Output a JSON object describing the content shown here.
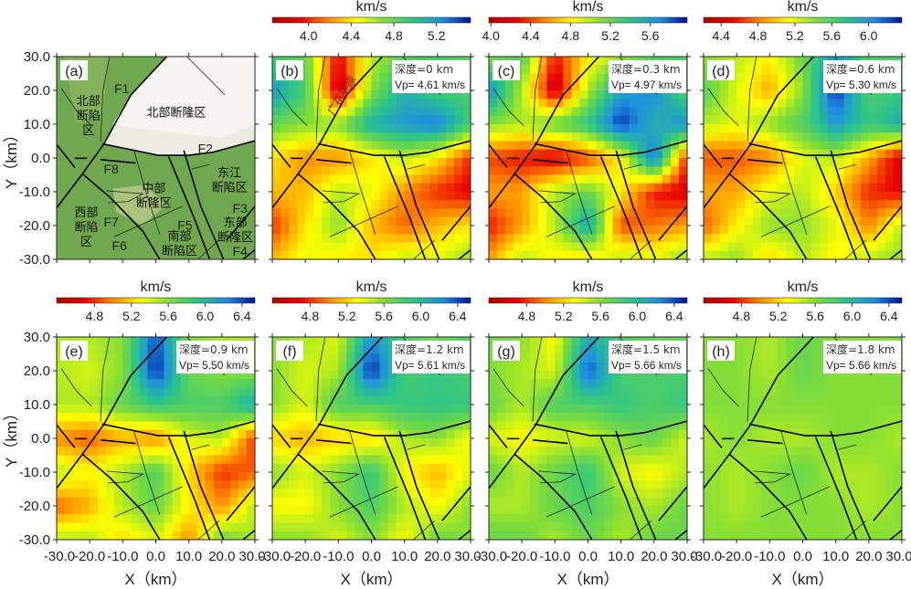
{
  "figure": {
    "xlabel": "X（km）",
    "ylabel": "Y（km）",
    "x_ticks": [
      -30,
      -20,
      -10,
      0,
      10,
      20,
      30
    ],
    "y_ticks": [
      30,
      20,
      10,
      0,
      -10,
      -20,
      -30
    ],
    "colorbar_unit": "km/s",
    "colormap": [
      "#b00000",
      "#e80000",
      "#ff8c00",
      "#ffff00",
      "#7ddc3c",
      "#2cc48a",
      "#1e90e0",
      "#0010a0"
    ]
  },
  "faults": [
    [
      [
        3.3,
        30
      ],
      [
        -7.5,
        18.7
      ],
      [
        -15.8,
        4
      ],
      [
        -22.2,
        -4.7
      ],
      [
        -30,
        -14.8
      ]
    ],
    [
      [
        -16.2,
        4.2
      ],
      [
        0.7,
        0.8
      ],
      [
        9.9,
        0.8
      ],
      [
        17.2,
        1.7
      ],
      [
        30,
        5.1
      ]
    ],
    [
      [
        -16.7,
        -0.5
      ],
      [
        -6.1,
        -1.5
      ]
    ],
    [
      [
        -24.5,
        -0.1
      ],
      [
        -20.8,
        -0.1
      ]
    ],
    [
      [
        -30,
        4
      ],
      [
        -24.5,
        -2.8
      ]
    ],
    [
      [
        -22.2,
        -4.7
      ],
      [
        -13.9,
        -11.6
      ],
      [
        -3.9,
        -21.7
      ],
      [
        1.2,
        -30
      ]
    ],
    [
      [
        3.9,
        0.4
      ],
      [
        11.7,
        -18
      ],
      [
        16.3,
        -30
      ]
    ],
    [
      [
        8.5,
        2.2
      ],
      [
        13.6,
        -14.3
      ],
      [
        20.5,
        -30
      ]
    ],
    [
      [
        30,
        -14.3
      ],
      [
        21.4,
        -24.4
      ]
    ],
    [
      [
        30,
        -27.2
      ],
      [
        26.4,
        -30
      ]
    ]
  ],
  "minor_faults": [
    [
      [
        -14,
        30
      ],
      [
        -16,
        20
      ],
      [
        -16.7,
        5
      ]
    ],
    [
      [
        9.4,
        30
      ],
      [
        20.9,
        18.7
      ]
    ],
    [
      [
        -28.6,
        20.6
      ],
      [
        -24,
        14
      ],
      [
        -19.4,
        9.5
      ]
    ],
    [
      [
        -6.6,
        2.2
      ],
      [
        -3,
        -10
      ],
      [
        1.2,
        -22.6
      ]
    ],
    [
      [
        -12.6,
        -23.3
      ],
      [
        8.1,
        -14.3
      ]
    ],
    [
      [
        -14.9,
        -9.7
      ],
      [
        -3.9,
        -10.6
      ],
      [
        -8.4,
        -12.9
      ],
      [
        -14.4,
        -13.2
      ]
    ],
    [
      [
        10.8,
        -3.3
      ],
      [
        16.3,
        -1.9
      ]
    ],
    [
      [
        12.7,
        -30
      ],
      [
        19.1,
        -24.4
      ]
    ]
  ],
  "chart_data": [
    {
      "panel": "(a)",
      "type": "map",
      "labels": [
        {
          "lines": [
            "F1"
          ],
          "color": "#e02020"
        },
        {
          "lines": [
            "北部",
            "断陷",
            "区"
          ],
          "color": "#111111"
        },
        {
          "lines": [
            "北部断隆区"
          ],
          "color": "#111111"
        },
        {
          "lines": [
            "F2"
          ],
          "color": "#e02020"
        },
        {
          "lines": [
            "F8"
          ],
          "color": "#e02020"
        },
        {
          "lines": [
            "东江",
            "断陷区"
          ],
          "color": "#111111"
        },
        {
          "lines": [
            "中部",
            "断隆区"
          ],
          "color": "#111111"
        },
        {
          "lines": [
            "F3"
          ],
          "color": "#e02020"
        },
        {
          "lines": [
            "西部",
            "断陷",
            "区"
          ],
          "color": "#111111"
        },
        {
          "lines": [
            "F7"
          ],
          "color": "#e02020"
        },
        {
          "lines": [
            "F5"
          ],
          "color": "#e02020"
        },
        {
          "lines": [
            "东部",
            "断隆区"
          ],
          "color": "#111111"
        },
        {
          "lines": [
            "F6"
          ],
          "color": "#e02020"
        },
        {
          "lines": [
            "南部",
            "断陷区"
          ],
          "color": "#111111"
        },
        {
          "lines": [
            "F4"
          ],
          "color": "#e02020"
        }
      ],
      "xlim": [
        -30,
        30
      ],
      "ylim": [
        -30,
        30
      ]
    },
    {
      "panel": "(b)",
      "type": "heatmap",
      "depth_label": "深度=0 km",
      "vp_label": "Vp= 4.61 km/s",
      "annotation": "广花平原",
      "colorbar_range": [
        3.66,
        5.52
      ],
      "colorbar_ticks": [
        4.0,
        4.4,
        4.8,
        5.2
      ],
      "x": [
        -30,
        -20,
        -10,
        0,
        10,
        20,
        30
      ],
      "y": [
        30,
        20,
        10,
        0,
        -10,
        -20,
        -30
      ],
      "values": [
        [
          4.9,
          4.8,
          3.9,
          4.6,
          4.8,
          4.9,
          4.8
        ],
        [
          5.2,
          4.9,
          3.8,
          4.7,
          5.1,
          4.9,
          4.9
        ],
        [
          4.8,
          4.7,
          4.7,
          5.1,
          5.2,
          5.3,
          4.9
        ],
        [
          4.4,
          4.2,
          4.2,
          4.4,
          4.6,
          4.4,
          4.0
        ],
        [
          4.3,
          4.3,
          4.6,
          4.5,
          4.2,
          4.0,
          3.9
        ],
        [
          4.0,
          4.4,
          4.7,
          4.3,
          4.1,
          4.3,
          4.4
        ],
        [
          4.3,
          4.5,
          4.4,
          4.4,
          4.6,
          4.5,
          4.7
        ]
      ]
    },
    {
      "panel": "(c)",
      "type": "heatmap",
      "depth_label": "深度=0.3 km",
      "vp_label": "Vp= 4.97 km/s",
      "colorbar_range": [
        3.98,
        5.97
      ],
      "colorbar_ticks": [
        4.0,
        4.4,
        4.8,
        5.2,
        5.6
      ],
      "x": [
        -30,
        -20,
        -10,
        0,
        10,
        20,
        30
      ],
      "y": [
        30,
        20,
        10,
        0,
        -10,
        -20,
        -30
      ],
      "values": [
        [
          5.1,
          5.3,
          4.3,
          4.8,
          5.0,
          5.2,
          5.3
        ],
        [
          5.7,
          5.0,
          4.1,
          5.0,
          5.6,
          5.7,
          5.2
        ],
        [
          5.1,
          5.0,
          5.2,
          5.4,
          5.9,
          5.5,
          5.7
        ],
        [
          4.4,
          4.3,
          4.2,
          4.4,
          4.8,
          5.8,
          4.3
        ],
        [
          4.6,
          4.6,
          5.0,
          5.2,
          4.8,
          4.3,
          4.2
        ],
        [
          4.3,
          4.6,
          5.0,
          5.6,
          4.4,
          4.5,
          4.6
        ],
        [
          4.6,
          5.0,
          4.8,
          4.7,
          5.0,
          4.9,
          5.1
        ]
      ]
    },
    {
      "panel": "(d)",
      "type": "heatmap",
      "depth_label": "深度=0.6 km",
      "vp_label": "Vp= 5.30 km/s",
      "colorbar_range": [
        4.21,
        6.36
      ],
      "colorbar_ticks": [
        4.4,
        4.8,
        5.2,
        5.6,
        6.0
      ],
      "x": [
        -30,
        -20,
        -10,
        0,
        10,
        20,
        30
      ],
      "y": [
        30,
        20,
        10,
        0,
        -10,
        -20,
        -30
      ],
      "values": [
        [
          5.4,
          5.3,
          5.1,
          5.5,
          6.0,
          5.6,
          5.6
        ],
        [
          5.6,
          5.2,
          4.9,
          5.4,
          6.3,
          5.6,
          5.7
        ],
        [
          5.3,
          5.2,
          5.4,
          5.6,
          6.0,
          5.7,
          5.9
        ],
        [
          4.7,
          4.7,
          4.8,
          5.2,
          5.3,
          4.9,
          4.4
        ],
        [
          4.9,
          4.9,
          5.2,
          5.3,
          5.0,
          4.6,
          4.5
        ],
        [
          4.7,
          5.1,
          5.4,
          5.4,
          5.2,
          4.8,
          5.3
        ],
        [
          5.3,
          5.4,
          5.0,
          5.3,
          5.1,
          5.3,
          5.4
        ]
      ]
    },
    {
      "panel": "(e)",
      "type": "heatmap",
      "depth_label": "深度=0.9 km",
      "vp_label": "Vp= 5.50 km/s",
      "colorbar_range": [
        4.39,
        6.54
      ],
      "colorbar_ticks": [
        4.8,
        5.2,
        5.6,
        6.0,
        6.4
      ],
      "x": [
        -30,
        -20,
        -10,
        0,
        10,
        20,
        30
      ],
      "y": [
        30,
        20,
        10,
        0,
        -10,
        -20,
        -30
      ],
      "values": [
        [
          5.5,
          5.5,
          5.6,
          6.4,
          5.6,
          5.5,
          5.5
        ],
        [
          5.5,
          5.4,
          5.6,
          6.5,
          5.7,
          5.6,
          5.6
        ],
        [
          5.5,
          5.5,
          5.7,
          5.9,
          5.8,
          5.8,
          6.1
        ],
        [
          5.0,
          4.9,
          5.1,
          5.0,
          5.4,
          5.5,
          4.8
        ],
        [
          5.5,
          5.3,
          5.5,
          5.8,
          5.2,
          4.8,
          4.9
        ],
        [
          4.9,
          5.1,
          5.5,
          5.7,
          5.3,
          5.0,
          5.5
        ],
        [
          5.5,
          5.5,
          5.2,
          5.4,
          5.0,
          5.7,
          5.5
        ]
      ]
    },
    {
      "panel": "(f)",
      "type": "heatmap",
      "depth_label": "深度=1.2 km",
      "vp_label": "Vp= 5.61 km/s",
      "colorbar_range": [
        4.39,
        6.54
      ],
      "colorbar_ticks": [
        4.8,
        5.2,
        5.6,
        6.0,
        6.4
      ],
      "x": [
        -30,
        -20,
        -10,
        0,
        10,
        20,
        30
      ],
      "y": [
        30,
        20,
        10,
        0,
        -10,
        -20,
        -30
      ],
      "values": [
        [
          5.6,
          5.5,
          5.4,
          6.2,
          5.8,
          5.6,
          5.8
        ],
        [
          5.6,
          5.4,
          5.5,
          6.5,
          5.8,
          5.9,
          5.8
        ],
        [
          5.6,
          5.4,
          5.8,
          5.8,
          5.9,
          5.9,
          5.9
        ],
        [
          5.2,
          5.1,
          5.2,
          5.2,
          5.5,
          5.6,
          5.3
        ],
        [
          5.6,
          5.4,
          5.6,
          5.9,
          5.3,
          5.1,
          5.4
        ],
        [
          5.3,
          5.3,
          5.6,
          5.8,
          5.5,
          5.3,
          5.6
        ],
        [
          5.6,
          5.6,
          5.4,
          5.6,
          5.3,
          5.7,
          5.6
        ]
      ]
    },
    {
      "panel": "(g)",
      "type": "heatmap",
      "depth_label": "深度=1.5 km",
      "vp_label": "Vp= 5.66 km/s",
      "colorbar_range": [
        4.39,
        6.54
      ],
      "colorbar_ticks": [
        4.8,
        5.2,
        5.6,
        6.0,
        6.4
      ],
      "x": [
        -30,
        -20,
        -10,
        0,
        10,
        20,
        30
      ],
      "y": [
        30,
        20,
        10,
        0,
        -10,
        -20,
        -30
      ],
      "values": [
        [
          5.7,
          5.6,
          5.3,
          6.1,
          5.8,
          5.7,
          5.7
        ],
        [
          5.6,
          5.5,
          5.4,
          6.4,
          5.8,
          5.8,
          5.8
        ],
        [
          5.7,
          5.5,
          5.8,
          5.8,
          5.9,
          5.8,
          5.9
        ],
        [
          5.4,
          5.3,
          5.4,
          5.4,
          5.6,
          5.7,
          5.4
        ],
        [
          5.7,
          5.5,
          5.7,
          5.9,
          5.4,
          5.3,
          5.5
        ],
        [
          5.5,
          5.5,
          5.7,
          5.8,
          5.6,
          5.5,
          5.7
        ],
        [
          5.7,
          5.7,
          5.5,
          5.7,
          5.5,
          5.7,
          5.7
        ]
      ]
    },
    {
      "panel": "(h)",
      "type": "heatmap",
      "depth_label": "深度=1.8 km",
      "vp_label": "Vp= 5.66 km/s",
      "colorbar_range": [
        4.39,
        6.54
      ],
      "colorbar_ticks": [
        4.8,
        5.2,
        5.6,
        6.0,
        6.4
      ],
      "x": [
        -30,
        -20,
        -10,
        0,
        10,
        20,
        30
      ],
      "y": [
        30,
        20,
        10,
        0,
        -10,
        -20,
        -30
      ],
      "values": [
        [
          5.6,
          5.6,
          5.5,
          5.7,
          5.6,
          5.6,
          5.6
        ],
        [
          5.6,
          5.6,
          5.5,
          5.7,
          5.6,
          5.6,
          5.6
        ],
        [
          5.6,
          5.6,
          5.6,
          5.6,
          5.6,
          5.6,
          5.6
        ],
        [
          5.5,
          5.6,
          5.5,
          5.5,
          5.6,
          5.6,
          5.5
        ],
        [
          5.6,
          5.5,
          5.6,
          5.7,
          5.5,
          5.5,
          5.6
        ],
        [
          5.6,
          5.5,
          5.6,
          5.6,
          5.6,
          5.5,
          5.6
        ],
        [
          5.6,
          5.6,
          5.6,
          5.6,
          5.6,
          5.6,
          5.6
        ]
      ]
    }
  ]
}
